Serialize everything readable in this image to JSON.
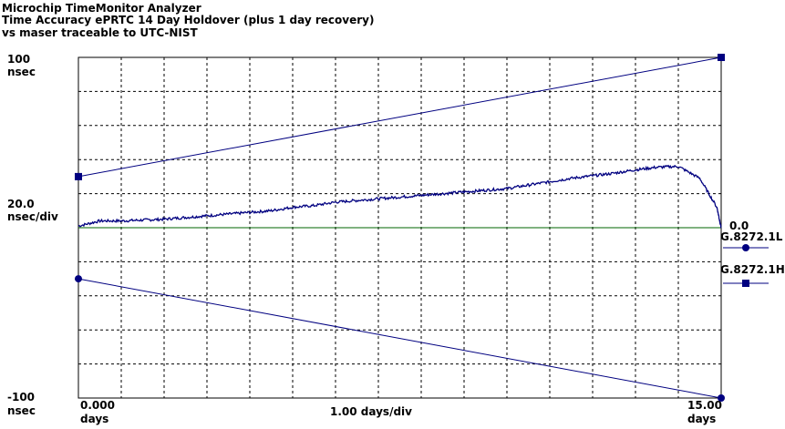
{
  "header": {
    "app_title": "Microchip TimeMonitor Analyzer",
    "title_line2": "Time Accuracy ePRTC 14 Day Holdover (plus 1 day recovery)",
    "title_line3": "vs maser traceable to UTC-NIST"
  },
  "chart_data": {
    "type": "line",
    "title": "Time Accuracy ePRTC 14 Day Holdover (plus 1 day recovery)",
    "subtitle": "vs maser traceable to UTC-NIST",
    "xlim": [
      0,
      15
    ],
    "ylim": [
      -100,
      100
    ],
    "grid": true,
    "y_axis": {
      "top_value": "100",
      "top_unit": "nsec",
      "scale_value": "20.0",
      "scale_unit": "nsec/div",
      "bottom_value": "-100",
      "bottom_unit": "nsec"
    },
    "x_axis": {
      "start_value": "0.000",
      "start_unit": "days",
      "scale": "1.00 days/div",
      "end_value": "15.00",
      "end_unit": "days"
    },
    "zero_label": "0.0",
    "series": [
      {
        "name": "",
        "color": "#000080",
        "x": [
          0,
          0.5,
          1,
          1.5,
          2,
          2.5,
          3,
          3.5,
          4,
          4.5,
          5,
          5.5,
          6,
          6.5,
          7,
          7.5,
          8,
          8.5,
          9,
          9.5,
          10,
          10.5,
          11,
          11.5,
          12,
          12.5,
          13,
          13.5,
          14,
          14.5,
          14.9,
          15
        ],
        "y": [
          1,
          4,
          4,
          4.5,
          5,
          6,
          7,
          8,
          9,
          10,
          12,
          13,
          15,
          16,
          17,
          18,
          19,
          20,
          21,
          22,
          23,
          25,
          27,
          29,
          30.5,
          32,
          34,
          35.5,
          36,
          29,
          12,
          0
        ]
      },
      {
        "name": "G.8272.1L",
        "color": "#000080",
        "marker": "circle",
        "x": [
          0,
          15
        ],
        "y": [
          -30,
          -100
        ]
      },
      {
        "name": "G.8272.1H",
        "color": "#000080",
        "marker": "square",
        "x": [
          0,
          15
        ],
        "y": [
          30,
          100
        ]
      }
    ],
    "reference_line": {
      "y": 0,
      "color": "#006400"
    }
  }
}
